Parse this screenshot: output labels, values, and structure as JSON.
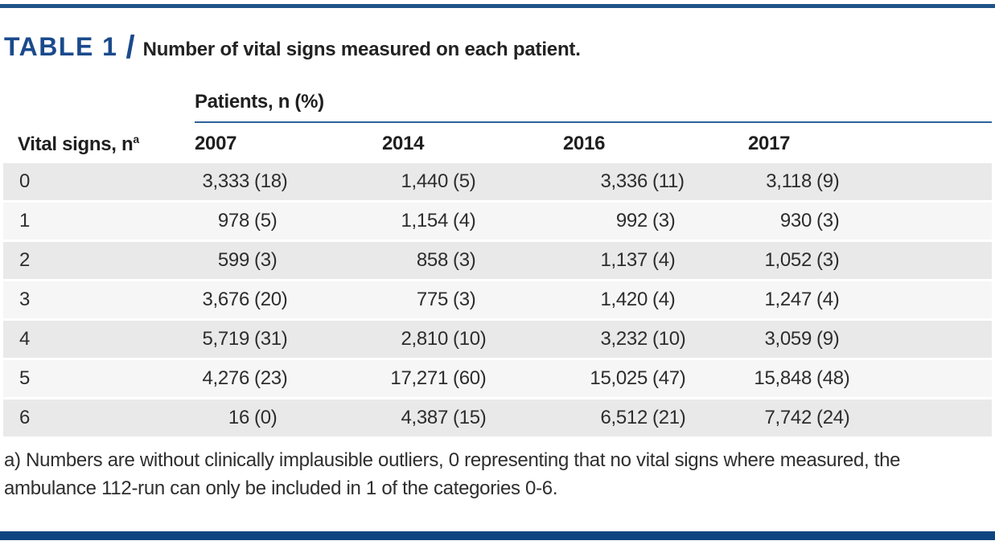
{
  "page": {
    "title_label": "TABLE 1",
    "title_separator": "/",
    "title_caption": "Number of vital signs measured on each patient."
  },
  "table": {
    "spanner_label": "Patients, n (%)",
    "stub_header": {
      "label": "Vital signs, n",
      "superscript": "a"
    },
    "years": [
      "2007",
      "2014",
      "2016",
      "2017"
    ],
    "rows": [
      {
        "label": "0",
        "cells": [
          {
            "n": "3,333",
            "p": "(18)"
          },
          {
            "n": "1,440",
            "p": "(5)"
          },
          {
            "n": "3,336",
            "p": "(11)"
          },
          {
            "n": "3,118",
            "p": "(9)"
          }
        ]
      },
      {
        "label": "1",
        "cells": [
          {
            "n": "978",
            "p": "(5)"
          },
          {
            "n": "1,154",
            "p": "(4)"
          },
          {
            "n": "992",
            "p": "(3)"
          },
          {
            "n": "930",
            "p": "(3)"
          }
        ]
      },
      {
        "label": "2",
        "cells": [
          {
            "n": "599",
            "p": "(3)"
          },
          {
            "n": "858",
            "p": "(3)"
          },
          {
            "n": "1,137",
            "p": "(4)"
          },
          {
            "n": "1,052",
            "p": "(3)"
          }
        ]
      },
      {
        "label": "3",
        "cells": [
          {
            "n": "3,676",
            "p": "(20)"
          },
          {
            "n": "775",
            "p": "(3)"
          },
          {
            "n": "1,420",
            "p": "(4)"
          },
          {
            "n": "1,247",
            "p": "(4)"
          }
        ]
      },
      {
        "label": "4",
        "cells": [
          {
            "n": "5,719",
            "p": "(31)"
          },
          {
            "n": "2,810",
            "p": "(10)"
          },
          {
            "n": "3,232",
            "p": "(10)"
          },
          {
            "n": "3,059",
            "p": "(9)"
          }
        ]
      },
      {
        "label": "5",
        "cells": [
          {
            "n": "4,276",
            "p": "(23)"
          },
          {
            "n": "17,271",
            "p": "(60)"
          },
          {
            "n": "15,025",
            "p": "(47)"
          },
          {
            "n": "15,848",
            "p": "(48)"
          }
        ]
      },
      {
        "label": "6",
        "cells": [
          {
            "n": "16",
            "p": "(0)"
          },
          {
            "n": "4,387",
            "p": "(15)"
          },
          {
            "n": "6,512",
            "p": "(21)"
          },
          {
            "n": "7,742",
            "p": "(24)"
          }
        ]
      }
    ]
  },
  "footnote": "a) Numbers are without clinically implausible outliers, 0 representing that no vital signs where measured, the ambulance 112-run can only be included in 1 of the categories 0-6.",
  "colors": {
    "accent_blue": "#1f5388",
    "title_blue": "#1a4a8c",
    "rule_blue": "#2f639b",
    "bottom_bar_blue": "#0e4480",
    "row_shade_dark": "#e9e9e9",
    "row_shade_light": "#f6f6f6",
    "text": "#2d2d2d"
  },
  "chart_data": {
    "type": "table",
    "title": "TABLE 1 / Number of vital signs measured on each patient.",
    "row_header": "Vital signs, n (a)",
    "column_group": "Patients, n (%)",
    "columns": [
      "2007",
      "2014",
      "2016",
      "2017"
    ],
    "rows": [
      {
        "vital_signs": 0,
        "2007": "3,333 (18)",
        "2014": "1,440 (5)",
        "2016": "3,336 (11)",
        "2017": "3,118 (9)"
      },
      {
        "vital_signs": 1,
        "2007": "978 (5)",
        "2014": "1,154 (4)",
        "2016": "992 (3)",
        "2017": "930 (3)"
      },
      {
        "vital_signs": 2,
        "2007": "599 (3)",
        "2014": "858 (3)",
        "2016": "1,137 (4)",
        "2017": "1,052 (3)"
      },
      {
        "vital_signs": 3,
        "2007": "3,676 (20)",
        "2014": "775 (3)",
        "2016": "1,420 (4)",
        "2017": "1,247 (4)"
      },
      {
        "vital_signs": 4,
        "2007": "5,719 (31)",
        "2014": "2,810 (10)",
        "2016": "3,232 (10)",
        "2017": "3,059 (9)"
      },
      {
        "vital_signs": 5,
        "2007": "4,276 (23)",
        "2014": "17,271 (60)",
        "2016": "15,025 (47)",
        "2017": "15,848 (48)"
      },
      {
        "vital_signs": 6,
        "2007": "16 (0)",
        "2014": "4,387 (15)",
        "2016": "6,512 (21)",
        "2017": "7,742 (24)"
      }
    ],
    "footnote": "a) Numbers are without clinically implausible outliers, 0 representing that no vital signs where measured, the ambulance 112-run can only be included in 1 of the categories 0-6."
  }
}
